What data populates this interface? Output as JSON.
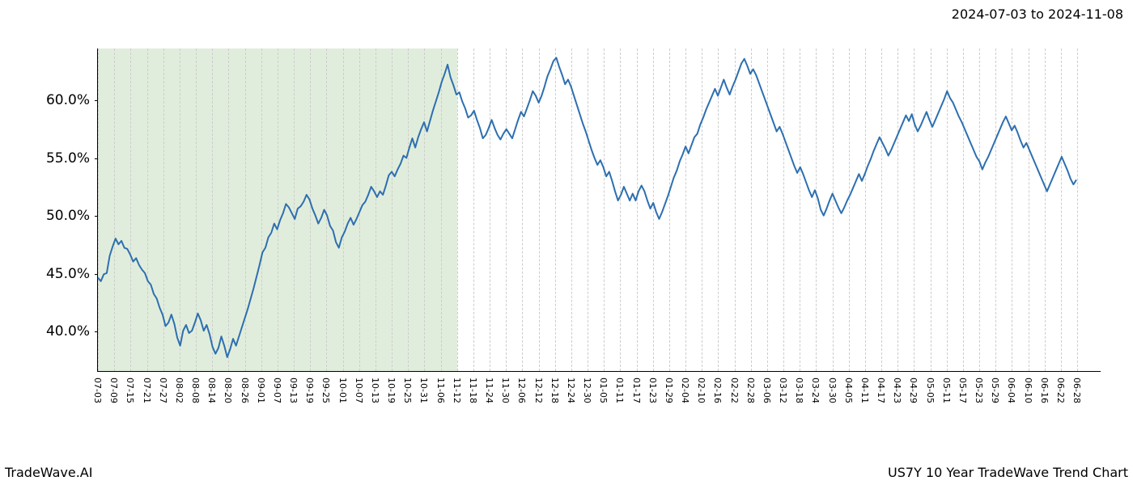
{
  "labels": {
    "top_right": "2024-07-03 to 2024-11-08",
    "bottom_left": "TradeWave.AI",
    "bottom_right": "US7Y 10 Year TradeWave Trend Chart"
  },
  "chart": {
    "type": "line",
    "background_color": "#ffffff",
    "line_color": "#2d6fb0",
    "line_width": 2,
    "grid_color": "#cccccc",
    "grid_dash": "3,3",
    "highlight_band": {
      "color": "#dcead6",
      "opacity": 0.85,
      "x_start_label": "07-03",
      "x_end_label": "11-12"
    },
    "y_axis": {
      "lim": [
        36.5,
        64.5
      ],
      "ticks": [
        40.0,
        45.0,
        50.0,
        55.0,
        60.0
      ],
      "tick_labels": [
        "40.0%",
        "45.0%",
        "50.0%",
        "55.0%",
        "60.0%"
      ],
      "fontsize": 17
    },
    "x_axis": {
      "tick_labels": [
        "07-03",
        "07-09",
        "07-15",
        "07-21",
        "07-27",
        "08-02",
        "08-08",
        "08-14",
        "08-20",
        "08-26",
        "09-01",
        "09-07",
        "09-13",
        "09-19",
        "09-25",
        "10-01",
        "10-07",
        "10-13",
        "10-19",
        "10-25",
        "10-31",
        "11-06",
        "11-12",
        "11-18",
        "11-24",
        "11-30",
        "12-06",
        "12-12",
        "12-18",
        "12-24",
        "12-30",
        "01-05",
        "01-11",
        "01-17",
        "01-23",
        "01-29",
        "02-04",
        "02-10",
        "02-16",
        "02-22",
        "02-28",
        "03-06",
        "03-12",
        "03-18",
        "03-24",
        "03-30",
        "04-05",
        "04-11",
        "04-17",
        "04-23",
        "04-29",
        "05-05",
        "05-11",
        "05-17",
        "05-23",
        "05-29",
        "06-04",
        "06-10",
        "06-16",
        "06-22",
        "06-28"
      ],
      "fontsize": 11,
      "rotation": 90
    },
    "series": [
      {
        "name": "US7Y",
        "color": "#2d6fb0",
        "values": [
          44.6,
          44.3,
          44.9,
          45.0,
          46.5,
          47.3,
          48.0,
          47.5,
          47.8,
          47.2,
          47.1,
          46.6,
          46.0,
          46.3,
          45.7,
          45.3,
          45.0,
          44.3,
          44.0,
          43.2,
          42.8,
          42.0,
          41.4,
          40.4,
          40.7,
          41.4,
          40.6,
          39.4,
          38.7,
          40.0,
          40.5,
          39.8,
          40.0,
          40.7,
          41.5,
          40.9,
          40.0,
          40.5,
          39.7,
          38.6,
          38.0,
          38.5,
          39.5,
          38.7,
          37.7,
          38.4,
          39.3,
          38.7,
          39.5,
          40.3,
          41.1,
          41.9,
          42.8,
          43.7,
          44.7,
          45.7,
          46.8,
          47.2,
          48.1,
          48.5,
          49.3,
          48.8,
          49.6,
          50.2,
          51.0,
          50.7,
          50.2,
          49.7,
          50.6,
          50.8,
          51.2,
          51.8,
          51.4,
          50.6,
          50.0,
          49.3,
          49.8,
          50.5,
          50.0,
          49.1,
          48.7,
          47.7,
          47.2,
          48.1,
          48.6,
          49.3,
          49.8,
          49.2,
          49.7,
          50.3,
          50.9,
          51.2,
          51.8,
          52.5,
          52.1,
          51.6,
          52.1,
          51.8,
          52.6,
          53.5,
          53.8,
          53.4,
          54.0,
          54.5,
          55.2,
          55.0,
          55.9,
          56.7,
          55.9,
          56.8,
          57.5,
          58.1,
          57.3,
          58.2,
          59.1,
          59.9,
          60.7,
          61.6,
          62.3,
          63.1,
          62.0,
          61.3,
          60.5,
          60.7,
          59.9,
          59.3,
          58.5,
          58.7,
          59.1,
          58.3,
          57.6,
          56.7,
          57.0,
          57.6,
          58.3,
          57.6,
          57.0,
          56.6,
          57.1,
          57.5,
          57.1,
          56.7,
          57.5,
          58.3,
          59.0,
          58.6,
          59.3,
          60.0,
          60.8,
          60.4,
          59.8,
          60.4,
          61.2,
          62.1,
          62.7,
          63.4,
          63.7,
          62.9,
          62.2,
          61.4,
          61.8,
          61.2,
          60.4,
          59.6,
          58.8,
          58.0,
          57.3,
          56.5,
          55.7,
          55.0,
          54.4,
          54.8,
          54.2,
          53.4,
          53.8,
          53.0,
          52.1,
          51.3,
          51.8,
          52.5,
          51.9,
          51.3,
          51.9,
          51.3,
          52.1,
          52.6,
          52.1,
          51.3,
          50.6,
          51.1,
          50.3,
          49.7,
          50.3,
          51.0,
          51.7,
          52.5,
          53.3,
          53.9,
          54.7,
          55.3,
          56.0,
          55.4,
          56.1,
          56.8,
          57.1,
          57.9,
          58.5,
          59.2,
          59.8,
          60.4,
          61.0,
          60.4,
          61.1,
          61.8,
          61.1,
          60.5,
          61.2,
          61.8,
          62.5,
          63.2,
          63.6,
          63.0,
          62.3,
          62.7,
          62.2,
          61.5,
          60.8,
          60.1,
          59.4,
          58.7,
          58.0,
          57.3,
          57.7,
          57.1,
          56.4,
          55.7,
          55.0,
          54.3,
          53.7,
          54.2,
          53.6,
          52.9,
          52.2,
          51.6,
          52.2,
          51.5,
          50.5,
          50.0,
          50.6,
          51.3,
          51.9,
          51.3,
          50.7,
          50.2,
          50.7,
          51.3,
          51.8,
          52.4,
          53.0,
          53.6,
          53.0,
          53.6,
          54.3,
          54.9,
          55.6,
          56.2,
          56.8,
          56.3,
          55.8,
          55.2,
          55.7,
          56.3,
          56.9,
          57.5,
          58.1,
          58.7,
          58.2,
          58.8,
          57.9,
          57.3,
          57.8,
          58.4,
          59.0,
          58.3,
          57.7,
          58.3,
          58.9,
          59.5,
          60.1,
          60.8,
          60.2,
          59.8,
          59.2,
          58.6,
          58.1,
          57.5,
          56.9,
          56.3,
          55.7,
          55.1,
          54.7,
          54.0,
          54.6,
          55.1,
          55.7,
          56.3,
          56.9,
          57.5,
          58.1,
          58.6,
          58.0,
          57.4,
          57.8,
          57.2,
          56.5,
          55.9,
          56.3,
          55.7,
          55.1,
          54.5,
          53.9,
          53.3,
          52.7,
          52.1,
          52.7,
          53.3,
          53.9,
          54.5,
          55.1,
          54.5,
          53.9,
          53.2,
          52.7,
          53.1
        ]
      }
    ]
  }
}
